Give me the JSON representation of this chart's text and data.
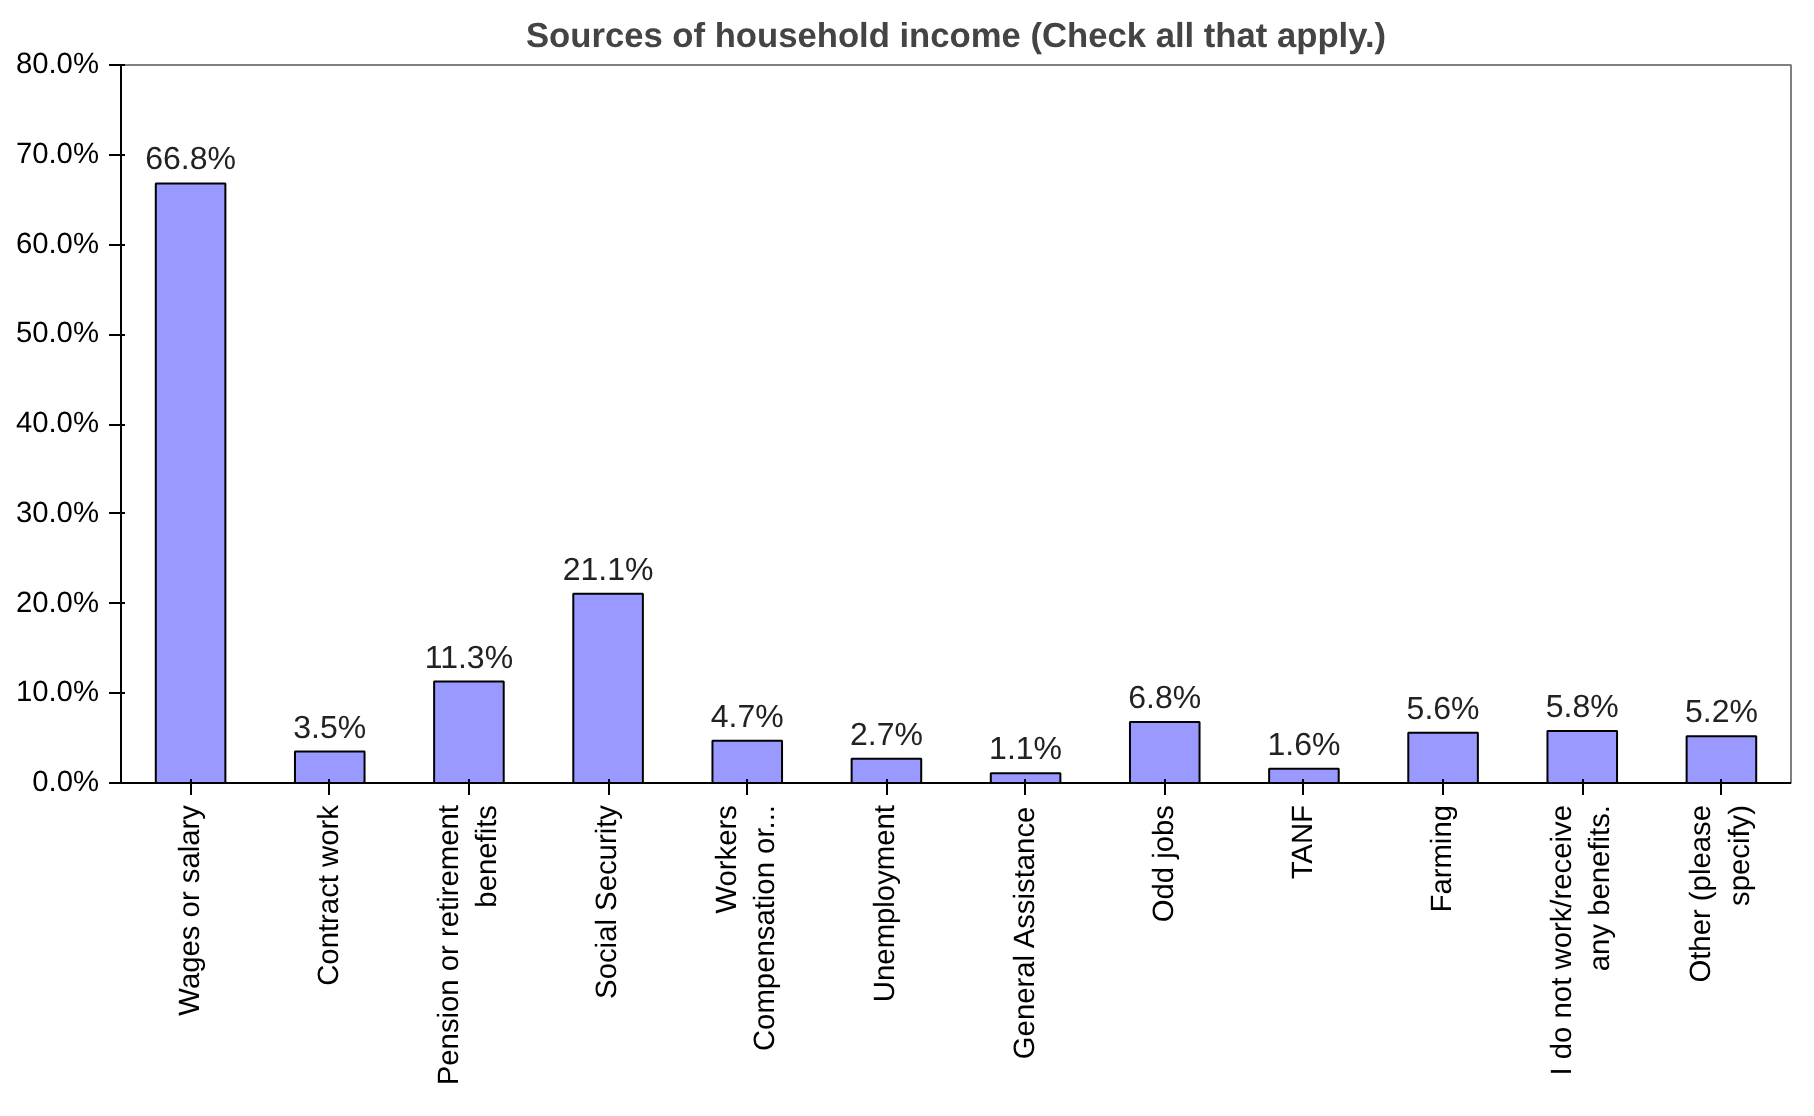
{
  "chart_data": {
    "type": "bar",
    "title": "Sources of household income (Check all that apply.)",
    "categories": [
      "Wages or salary",
      "Contract work",
      "Pension or retirement\nbenefits",
      "Social Security",
      "Workers\nCompensation or...",
      "Unemployment",
      "General Assistance",
      "Odd jobs",
      "TANF",
      "Farming",
      "I do not work/receive\nany benefits.",
      "Other (please\nspecify)"
    ],
    "values": [
      66.8,
      3.5,
      11.3,
      21.1,
      4.7,
      2.7,
      1.1,
      6.8,
      1.6,
      5.6,
      5.8,
      5.2
    ],
    "value_labels": [
      "66.8%",
      "3.5%",
      "11.3%",
      "21.1%",
      "4.7%",
      "2.7%",
      "1.1%",
      "6.8%",
      "1.6%",
      "5.6%",
      "5.8%",
      "5.2%"
    ],
    "color": "#9999ff",
    "ylim": [
      0,
      80
    ],
    "yticks": [
      {
        "value": 0,
        "label": "0.0%"
      },
      {
        "value": 10,
        "label": "10.0%"
      },
      {
        "value": 20,
        "label": "20.0%"
      },
      {
        "value": 30,
        "label": "30.0%"
      },
      {
        "value": 40,
        "label": "40.0%"
      },
      {
        "value": 50,
        "label": "50.0%"
      },
      {
        "value": 60,
        "label": "60.0%"
      },
      {
        "value": 70,
        "label": "70.0%"
      },
      {
        "value": 80,
        "label": "80.0%"
      }
    ],
    "grid": false
  }
}
